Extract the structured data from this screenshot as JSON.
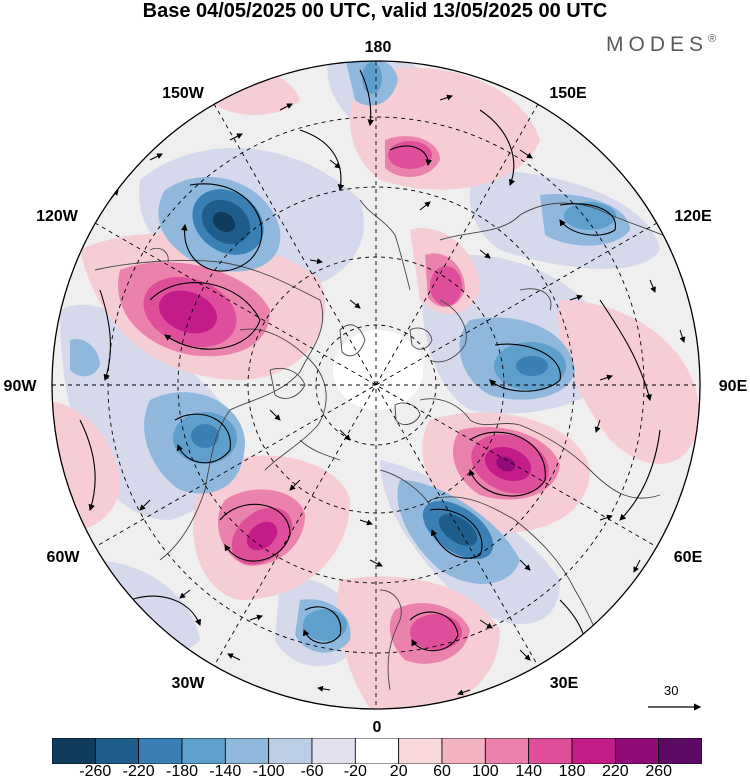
{
  "title": "Base 04/05/2025 00 UTC, valid 13/05/2025 00 UTC",
  "brand": "MODES",
  "brand_mark": "®",
  "longitude_labels": {
    "north": "180",
    "n_e": "150E",
    "n_w": "150W",
    "w_upper": "120W",
    "e_upper": "120E",
    "west": "90W",
    "east": "90E",
    "w_lower": "60W",
    "e_lower": "60E",
    "s_w": "30W",
    "s_e": "30E",
    "south": "0"
  },
  "reference_vector": {
    "label": "30"
  },
  "colorbar": {
    "tick_labels": [
      "-260",
      "-220",
      "-180",
      "-140",
      "-100",
      "-60",
      "-20",
      "20",
      "60",
      "100",
      "140",
      "180",
      "220",
      "260"
    ],
    "colors": [
      "#0f3b5c",
      "#1f5e8c",
      "#3b80b5",
      "#5f9fcb",
      "#8fb8dc",
      "#bccde6",
      "#e3e1ef",
      "#ffffff",
      "#fad9dc",
      "#f4b3c1",
      "#ea82ad",
      "#de4e9b",
      "#c31b87",
      "#8f0c78",
      "#5c0a63"
    ]
  },
  "anomaly_centers": [
    {
      "value": -260,
      "color": "#1f5e8c"
    },
    {
      "value": 220,
      "color": "#c31b87"
    },
    {
      "value": 200,
      "color": "#c31b87"
    },
    {
      "value": -200,
      "color": "#3b80b5"
    },
    {
      "value": 180,
      "color": "#de4e9b"
    },
    {
      "value": -180,
      "color": "#3b80b5"
    },
    {
      "value": 160,
      "color": "#de4e9b"
    },
    {
      "value": -140,
      "color": "#5f9fcb"
    },
    {
      "value": 140,
      "color": "#ea82ad"
    }
  ]
}
